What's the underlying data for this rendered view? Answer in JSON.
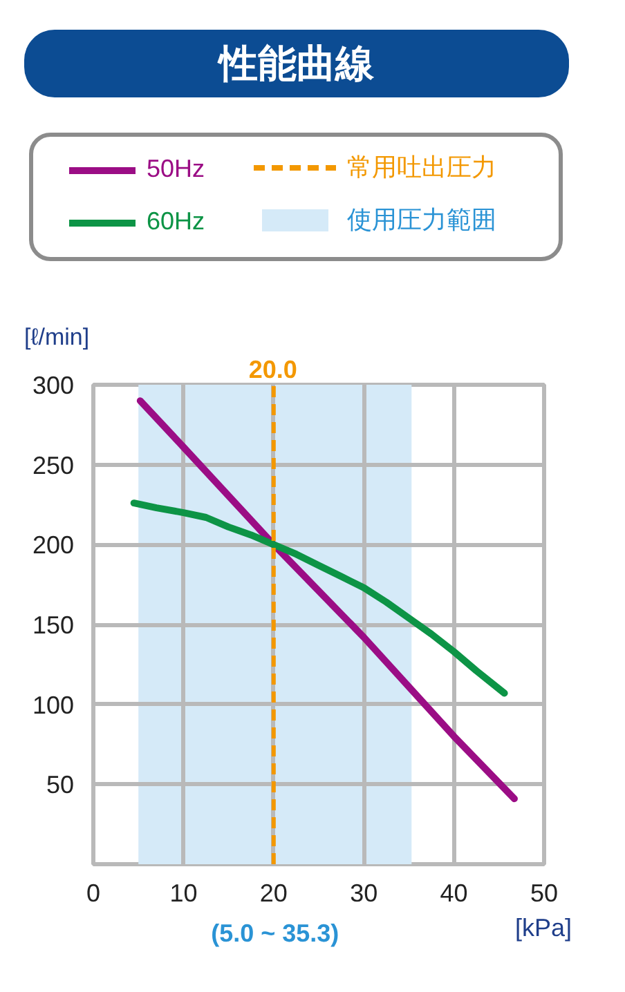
{
  "chart_data": {
    "type": "line",
    "title": "性能曲線",
    "xlabel": "[kPa]",
    "ylabel": "[ℓ/min]",
    "xlim": [
      0,
      50
    ],
    "ylim": [
      0,
      300
    ],
    "xticks": [
      0,
      10,
      20,
      30,
      40,
      50
    ],
    "yticks": [
      50,
      100,
      150,
      200,
      250,
      300
    ],
    "grid": true,
    "legend": "top",
    "line_style": "solid",
    "series": [
      {
        "name": "50Hz",
        "color": "#9b0d85",
        "x": [
          5.2,
          10,
          20,
          30,
          40,
          46.7
        ],
        "values": [
          290,
          261,
          200,
          142,
          80,
          41
        ]
      },
      {
        "name": "60Hz",
        "color": "#0d9446",
        "x": [
          4.5,
          7,
          10,
          12.5,
          15,
          17.5,
          20,
          22.5,
          25,
          27.5,
          30,
          32.5,
          35,
          37.5,
          40,
          42.5,
          45.6
        ],
        "values": [
          226,
          223,
          220,
          217,
          211,
          206,
          200,
          194,
          187,
          180,
          173,
          164,
          154,
          144,
          133,
          121,
          107
        ]
      }
    ],
    "ref_lines": [
      {
        "axis": "x",
        "value": 20.0,
        "label": "常用吐出圧力",
        "color": "#f39800",
        "line_style": "dashed"
      }
    ],
    "bands": [
      {
        "axis": "x",
        "from": 5.0,
        "to": 35.3,
        "label": "使用圧力範囲",
        "color": "#d5eaf8"
      }
    ],
    "annotations": [
      {
        "text": "20.0",
        "x": 20,
        "y": 300
      },
      {
        "text": "(5.0 ~ 35.3)",
        "x": 20.15,
        "y": 0
      }
    ]
  }
}
